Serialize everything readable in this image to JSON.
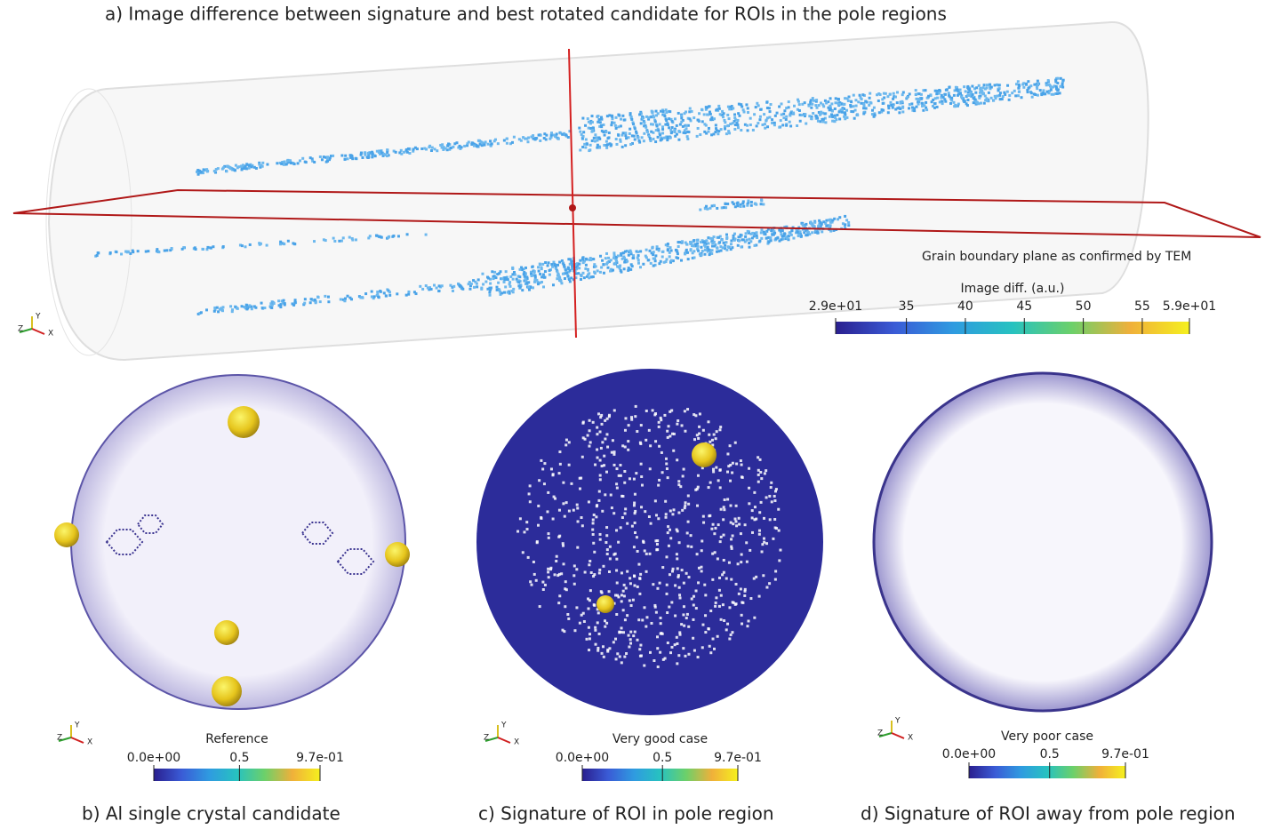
{
  "panel_a": {
    "caption": "a) Image difference between signature and best rotated candidate for ROIs in the pole regions",
    "annotation": "Grain boundary plane as confirmed by TEM",
    "triad": [
      "Y",
      "Z",
      "X"
    ],
    "colorbar": {
      "title": "Image diff. (a.u.)",
      "range": [
        29,
        59
      ],
      "ticks": [
        {
          "value": 29,
          "label": "2.9e+01"
        },
        35,
        40,
        45,
        50,
        55,
        {
          "value": 59,
          "label": "5.9e+01"
        }
      ],
      "colormap": [
        "#2a1f8f",
        "#3a5bd6",
        "#2f9be0",
        "#27c2c0",
        "#6cd06a",
        "#f0b03a",
        "#f5f01e"
      ]
    }
  },
  "panels": [
    {
      "caption": "b) Al single crystal candidate",
      "triad": [
        "Y",
        "Z",
        "X"
      ],
      "colorbar": {
        "title": "Reference",
        "range": [
          0,
          0.97
        ],
        "ticks": [
          {
            "value": 0,
            "label": "0.0e+00"
          },
          0.5,
          {
            "value": 0.97,
            "label": "9.7e-01"
          }
        ],
        "colormap": [
          "#2a1f8f",
          "#3a5bd6",
          "#2f9be0",
          "#27c2c0",
          "#6cd06a",
          "#f0b03a",
          "#f5f01e"
        ]
      }
    },
    {
      "caption": "c) Signature of ROI in pole region",
      "triad": [
        "Y",
        "Z",
        "X"
      ],
      "colorbar": {
        "title": "Very good case",
        "range": [
          0,
          0.97
        ],
        "ticks": [
          {
            "value": 0,
            "label": "0.0e+00"
          },
          0.5,
          {
            "value": 0.97,
            "label": "9.7e-01"
          }
        ],
        "colormap": [
          "#2a1f8f",
          "#3a5bd6",
          "#2f9be0",
          "#27c2c0",
          "#6cd06a",
          "#f0b03a",
          "#f5f01e"
        ]
      }
    },
    {
      "caption": "d) Signature of ROI away from pole region",
      "triad": [
        "Y",
        "Z",
        "X"
      ],
      "colorbar": {
        "title": "Very poor case",
        "range": [
          0,
          0.97
        ],
        "ticks": [
          {
            "value": 0,
            "label": "0.0e+00"
          },
          0.5,
          {
            "value": 0.97,
            "label": "9.7e-01"
          }
        ],
        "colormap": [
          "#2a1f8f",
          "#3a5bd6",
          "#2f9be0",
          "#27c2c0",
          "#6cd06a",
          "#f0b03a",
          "#f5f01e"
        ]
      }
    }
  ]
}
